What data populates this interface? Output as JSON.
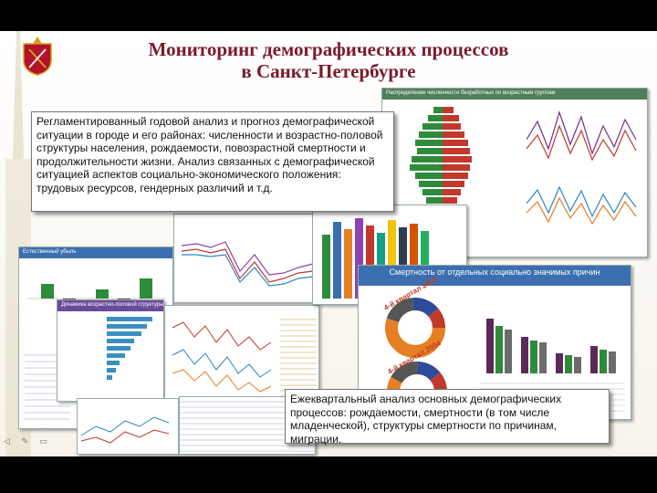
{
  "title_line1": "Мониторинг демографических процессов",
  "title_line2": "в Санкт-Петербурге",
  "callout_top": "Регламентированный годовой анализ и прогноз демографической ситуации в городе и его районах: численности и возрастно-половой структуры населения, рождаемости, повозрастной смертности и продолжительности жизни. Анализ связанных с демографической ситуацией аспектов социально-экономического положения: трудовых ресурсов, гендерных различий и т.д.",
  "callout_bottom": "Ежеквартальный анализ основных демографических процессов: рождаемости, смертности (в том числе младенческой), структуры смертности по причинам, миграции.",
  "panel_headers": {
    "p1": "Естественный убыль",
    "p2": "Динамика возрастно-половой структуры",
    "p3": "Смертность от отдельных социально значимых причин",
    "p4": "Распределение численности безработных по возрастным группам"
  },
  "donut_labels": {
    "d1": "4-й квартал 2003",
    "d2": "4-й квартал 2004"
  },
  "nav_icons": [
    "arrow-left-icon",
    "pen-icon",
    "menu-icon"
  ],
  "colors": {
    "title": "#7a1a2a",
    "panel_head_blue": "#3b6fb0",
    "panel_head_purple": "#6a4b9a"
  }
}
